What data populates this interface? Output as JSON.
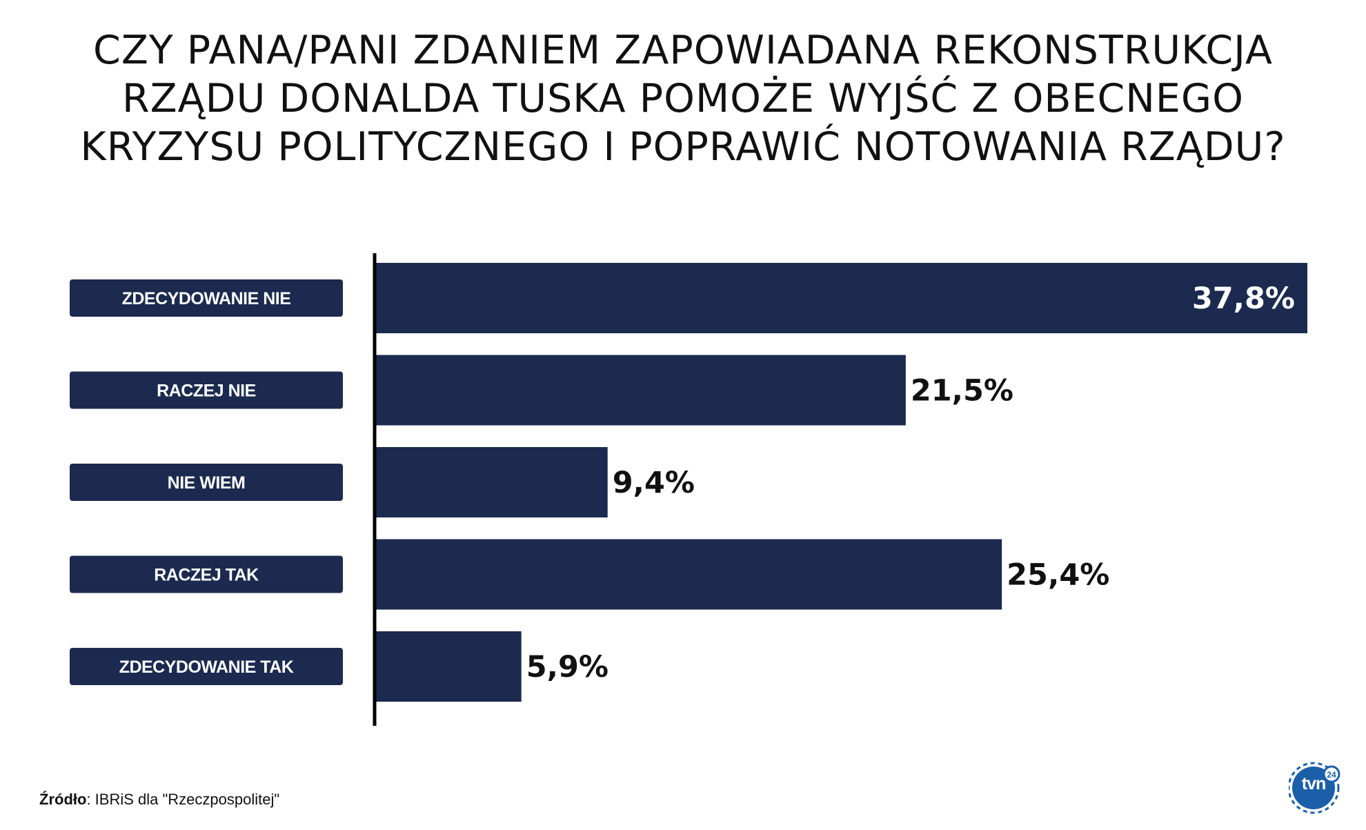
{
  "title_lines": [
    "CZY PANA/PANI ZDANIEM ZAPOWIADANA REKONSTRUKCJA",
    "RZĄDU DONALDA TUSKA POMOŻE WYJŚĆ Z OBECNEGO",
    "KRYZYSU POLITYCZNEGO I POPRAWIĆ NOTOWANIA RZĄDU?"
  ],
  "source": {
    "label": "Źródło",
    "text": ": IBRiS dla \"Rzeczpospolitej\""
  },
  "logo": {
    "text": "tvn",
    "suffix_icon": "tvn24-logo-icon"
  },
  "colors": {
    "bar": "#1b2a4e",
    "text": "#111111",
    "label_box": "#1b2a4e"
  },
  "chart_data": {
    "type": "bar",
    "orientation": "horizontal",
    "title": "CZY PANA/PANI ZDANIEM ZAPOWIADANA REKONSTRUKCJA RZĄDU DONALDA TUSKA POMOŻE WYJŚĆ Z OBECNEGO KRYZYSU POLITYCZNEGO I POPRAWIĆ NOTOWANIA RZĄDU?",
    "categories": [
      "ZDECYDOWANIE NIE",
      "RACZEJ NIE",
      "NIE WIEM",
      "RACZEJ TAK",
      "ZDECYDOWANIE TAK"
    ],
    "values": [
      37.8,
      21.5,
      9.4,
      25.4,
      5.9
    ],
    "value_labels": [
      "37,8%",
      "21,5%",
      "9,4%",
      "25,4%",
      "5,9%"
    ],
    "unit": "%",
    "xlim": [
      0,
      37.8
    ],
    "grid": false,
    "legend": "none"
  }
}
